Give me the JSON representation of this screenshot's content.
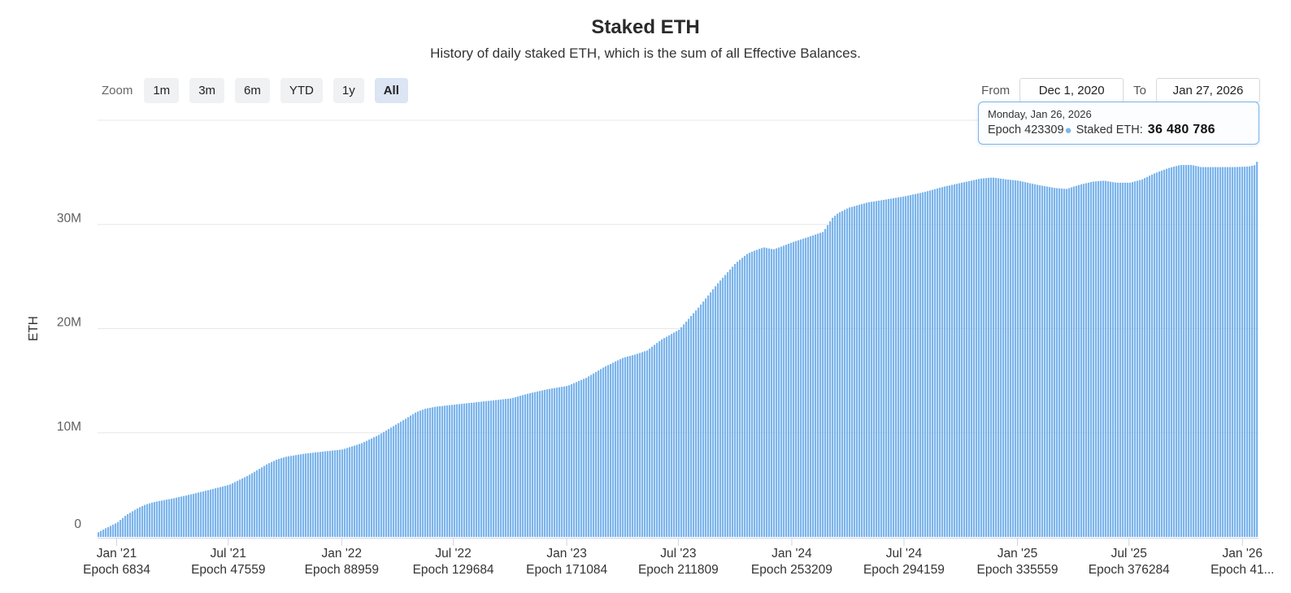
{
  "header": {
    "title": "Staked ETH",
    "subtitle": "History of daily staked ETH, which is the sum of all Effective Balances."
  },
  "range_selector": {
    "label": "Zoom",
    "buttons": [
      {
        "label": "1m",
        "active": false
      },
      {
        "label": "3m",
        "active": false
      },
      {
        "label": "6m",
        "active": false
      },
      {
        "label": "YTD",
        "active": false
      },
      {
        "label": "1y",
        "active": false
      },
      {
        "label": "All",
        "active": true
      }
    ],
    "from_label": "From",
    "from_value": "Dec 1, 2020",
    "to_label": "To",
    "to_value": "Jan 27, 2026"
  },
  "tooltip": {
    "date_line": "Monday, Jan 26, 2026",
    "epoch_label": "Epoch 423309",
    "marker": "●",
    "series_label": "Staked ETH:",
    "value": "36 480 786"
  },
  "chart_data": {
    "type": "column",
    "title": "Staked ETH",
    "subtitle": "History of daily staked ETH, which is the sum of all Effective Balances.",
    "xlabel": "",
    "ylabel": "ETH",
    "ylim": [
      0,
      40000000
    ],
    "grid": "horizontal",
    "legend": "none",
    "x_range": [
      "2020-12-01",
      "2026-01-27"
    ],
    "y_ticks": [
      {
        "value": 0,
        "label": "0"
      },
      {
        "value": 10000000,
        "label": "10M"
      },
      {
        "value": 20000000,
        "label": "20M"
      },
      {
        "value": 30000000,
        "label": "30M"
      }
    ],
    "y_gridline_values": [
      10000000,
      20000000,
      30000000,
      40000000
    ],
    "x_ticks": [
      {
        "date": "2021-01-01",
        "month": "Jan '21",
        "epoch": "Epoch 6834"
      },
      {
        "date": "2021-07-01",
        "month": "Jul '21",
        "epoch": "Epoch 47559"
      },
      {
        "date": "2022-01-01",
        "month": "Jan '22",
        "epoch": "Epoch 88959"
      },
      {
        "date": "2022-07-01",
        "month": "Jul '22",
        "epoch": "Epoch 129684"
      },
      {
        "date": "2023-01-01",
        "month": "Jan '23",
        "epoch": "Epoch 171084"
      },
      {
        "date": "2023-07-01",
        "month": "Jul '23",
        "epoch": "Epoch 211809"
      },
      {
        "date": "2024-01-01",
        "month": "Jan '24",
        "epoch": "Epoch 253209"
      },
      {
        "date": "2024-07-01",
        "month": "Jul '24",
        "epoch": "Epoch 294159"
      },
      {
        "date": "2025-01-01",
        "month": "Jan '25",
        "epoch": "Epoch 335559"
      },
      {
        "date": "2025-07-01",
        "month": "Jul '25",
        "epoch": "Epoch 376284"
      },
      {
        "date": "2026-01-01",
        "month": "Jan '26",
        "epoch": "Epoch 41..."
      }
    ],
    "series": [
      {
        "name": "Staked ETH",
        "color": "#7cb5ec",
        "points": [
          [
            "2020-12-01",
            450000
          ],
          [
            "2020-12-15",
            900000
          ],
          [
            "2021-01-01",
            1400000
          ],
          [
            "2021-01-15",
            2100000
          ],
          [
            "2021-02-01",
            2700000
          ],
          [
            "2021-02-15",
            3100000
          ],
          [
            "2021-03-01",
            3350000
          ],
          [
            "2021-04-01",
            3700000
          ],
          [
            "2021-05-01",
            4100000
          ],
          [
            "2021-06-01",
            4550000
          ],
          [
            "2021-07-01",
            5000000
          ],
          [
            "2021-08-01",
            5900000
          ],
          [
            "2021-09-01",
            7000000
          ],
          [
            "2021-09-15",
            7400000
          ],
          [
            "2021-10-01",
            7700000
          ],
          [
            "2021-11-01",
            8000000
          ],
          [
            "2021-12-01",
            8200000
          ],
          [
            "2022-01-01",
            8400000
          ],
          [
            "2022-02-01",
            9000000
          ],
          [
            "2022-03-01",
            9800000
          ],
          [
            "2022-04-01",
            10900000
          ],
          [
            "2022-05-01",
            12000000
          ],
          [
            "2022-05-15",
            12300000
          ],
          [
            "2022-06-01",
            12500000
          ],
          [
            "2022-07-01",
            12700000
          ],
          [
            "2022-08-01",
            12900000
          ],
          [
            "2022-09-01",
            13100000
          ],
          [
            "2022-10-01",
            13300000
          ],
          [
            "2022-11-01",
            13800000
          ],
          [
            "2022-12-01",
            14200000
          ],
          [
            "2023-01-01",
            14500000
          ],
          [
            "2023-02-01",
            15300000
          ],
          [
            "2023-03-01",
            16300000
          ],
          [
            "2023-04-01",
            17200000
          ],
          [
            "2023-04-20",
            17500000
          ],
          [
            "2023-05-10",
            17900000
          ],
          [
            "2023-06-01",
            18900000
          ],
          [
            "2023-07-01",
            19900000
          ],
          [
            "2023-08-01",
            22000000
          ],
          [
            "2023-09-01",
            24300000
          ],
          [
            "2023-10-01",
            26300000
          ],
          [
            "2023-10-20",
            27200000
          ],
          [
            "2023-11-01",
            27500000
          ],
          [
            "2023-11-15",
            27800000
          ],
          [
            "2023-12-01",
            27600000
          ],
          [
            "2023-12-15",
            27900000
          ],
          [
            "2024-01-01",
            28300000
          ],
          [
            "2024-02-01",
            28900000
          ],
          [
            "2024-02-20",
            29300000
          ],
          [
            "2024-03-05",
            30600000
          ],
          [
            "2024-03-15",
            31100000
          ],
          [
            "2024-04-01",
            31600000
          ],
          [
            "2024-05-01",
            32100000
          ],
          [
            "2024-06-01",
            32400000
          ],
          [
            "2024-07-01",
            32700000
          ],
          [
            "2024-08-01",
            33100000
          ],
          [
            "2024-09-01",
            33600000
          ],
          [
            "2024-10-01",
            34000000
          ],
          [
            "2024-11-01",
            34400000
          ],
          [
            "2024-11-20",
            34500000
          ],
          [
            "2024-12-15",
            34300000
          ],
          [
            "2025-01-01",
            34200000
          ],
          [
            "2025-02-01",
            33800000
          ],
          [
            "2025-03-01",
            33500000
          ],
          [
            "2025-03-20",
            33400000
          ],
          [
            "2025-04-10",
            33800000
          ],
          [
            "2025-05-01",
            34100000
          ],
          [
            "2025-05-20",
            34200000
          ],
          [
            "2025-06-10",
            34000000
          ],
          [
            "2025-07-01",
            34000000
          ],
          [
            "2025-07-20",
            34300000
          ],
          [
            "2025-08-10",
            34900000
          ],
          [
            "2025-09-01",
            35400000
          ],
          [
            "2025-09-20",
            35700000
          ],
          [
            "2025-10-10",
            35700000
          ],
          [
            "2025-10-25",
            35500000
          ],
          [
            "2025-11-15",
            35500000
          ],
          [
            "2025-12-15",
            35500000
          ],
          [
            "2026-01-10",
            35550000
          ],
          [
            "2026-01-20",
            35700000
          ],
          [
            "2026-01-24",
            36100000
          ],
          [
            "2026-01-26",
            36480786
          ]
        ]
      }
    ],
    "colors": {
      "series_fill": "#7cb5ec",
      "gridline": "#e7e7e7",
      "axis_line": "#ccd6eb",
      "axis_text": "#333333",
      "y_axis_text": "#606060"
    }
  }
}
